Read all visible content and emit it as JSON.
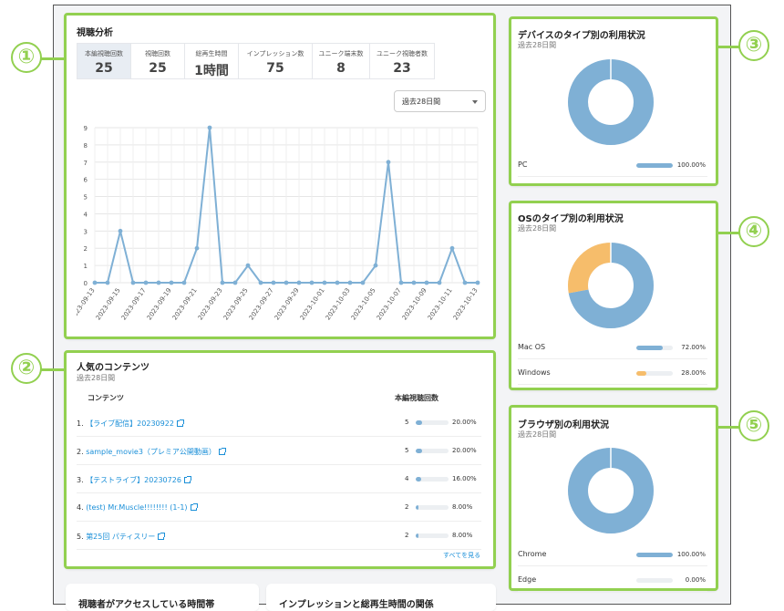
{
  "viewing": {
    "title": "視聴分析",
    "metrics": [
      {
        "label": "本編視聴回数",
        "value": "25",
        "active": true
      },
      {
        "label": "視聴回数",
        "value": "25"
      },
      {
        "label": "総再生時間",
        "value": "1時間"
      },
      {
        "label": "インプレッション数",
        "value": "75"
      },
      {
        "label": "ユニーク端末数",
        "value": "8"
      },
      {
        "label": "ユニーク視聴者数",
        "value": "23"
      }
    ],
    "period_select": "過去28日間"
  },
  "chart_data": {
    "type": "line",
    "ylim": [
      0,
      9
    ],
    "y_ticks": [
      "0",
      "1",
      "2",
      "3",
      "4",
      "5",
      "6",
      "7",
      "8",
      "9"
    ],
    "x_tick_labels": [
      "2023-09-13",
      "2023-09-15",
      "2023-09-17",
      "2023-09-19",
      "2023-09-21",
      "2023-09-23",
      "2023-09-25",
      "2023-09-27",
      "2023-09-29",
      "2023-10-01",
      "2023-10-03",
      "2023-10-05",
      "2023-10-07",
      "2023-10-09",
      "2023-10-11",
      "2023-10-13"
    ],
    "series": [
      {
        "values": [
          0,
          0,
          3,
          0,
          0,
          0,
          0,
          0,
          2,
          9,
          0,
          0,
          1,
          0,
          0,
          0,
          0,
          0,
          0,
          0,
          0,
          0,
          1,
          7,
          0,
          0,
          0,
          0,
          2,
          0,
          0
        ]
      }
    ],
    "color": "#7fb0d5"
  },
  "popular": {
    "title": "人気のコンテンツ",
    "sub": "過去28日間",
    "col_content": "コンテンツ",
    "col_count": "本編視聴回数",
    "items": [
      {
        "num": "1.",
        "title": "【ライブ配信】20230922",
        "count": "5",
        "pct": "20.00%",
        "ratio": 0.2
      },
      {
        "num": "2.",
        "title": "sample_movie3（プレミア公開動画）",
        "count": "5",
        "pct": "20.00%",
        "ratio": 0.2
      },
      {
        "num": "3.",
        "title": "【テストライブ】20230726",
        "count": "4",
        "pct": "16.00%",
        "ratio": 0.16
      },
      {
        "num": "4.",
        "title": "(test) Mr.Muscle!!!!!!!! (1-1)",
        "count": "2",
        "pct": "8.00%",
        "ratio": 0.08
      },
      {
        "num": "5.",
        "title": "第25回 パティスリー",
        "count": "2",
        "pct": "8.00%",
        "ratio": 0.08
      }
    ],
    "see_all": "すべてを見る"
  },
  "device": {
    "title": "デバイスのタイプ別の利用状況",
    "sub": "過去28日間",
    "items": [
      {
        "name": "PC",
        "pct": "100.00%",
        "ratio": 1.0,
        "color": "#7fb0d5"
      }
    ]
  },
  "os": {
    "title": "OSのタイプ別の利用状況",
    "sub": "過去28日間",
    "items": [
      {
        "name": "Mac OS",
        "pct": "72.00%",
        "ratio": 0.72,
        "color": "#7fb0d5"
      },
      {
        "name": "Windows",
        "pct": "28.00%",
        "ratio": 0.28,
        "color": "#f6bd6b"
      }
    ]
  },
  "browser": {
    "title": "ブラウザ別の利用状況",
    "sub": "過去28日間",
    "items": [
      {
        "name": "Chrome",
        "pct": "100.00%",
        "ratio": 1.0,
        "color": "#7fb0d5"
      },
      {
        "name": "Edge",
        "pct": "0.00%",
        "ratio": 0.0,
        "color": "#7fb0d5"
      }
    ]
  },
  "bottom": {
    "card1_title": "視聴者がアクセスしている時間帯",
    "card2_title": "インプレッションと総再生時間の関係"
  },
  "callouts": [
    "①",
    "②",
    "③",
    "④",
    "⑤"
  ]
}
